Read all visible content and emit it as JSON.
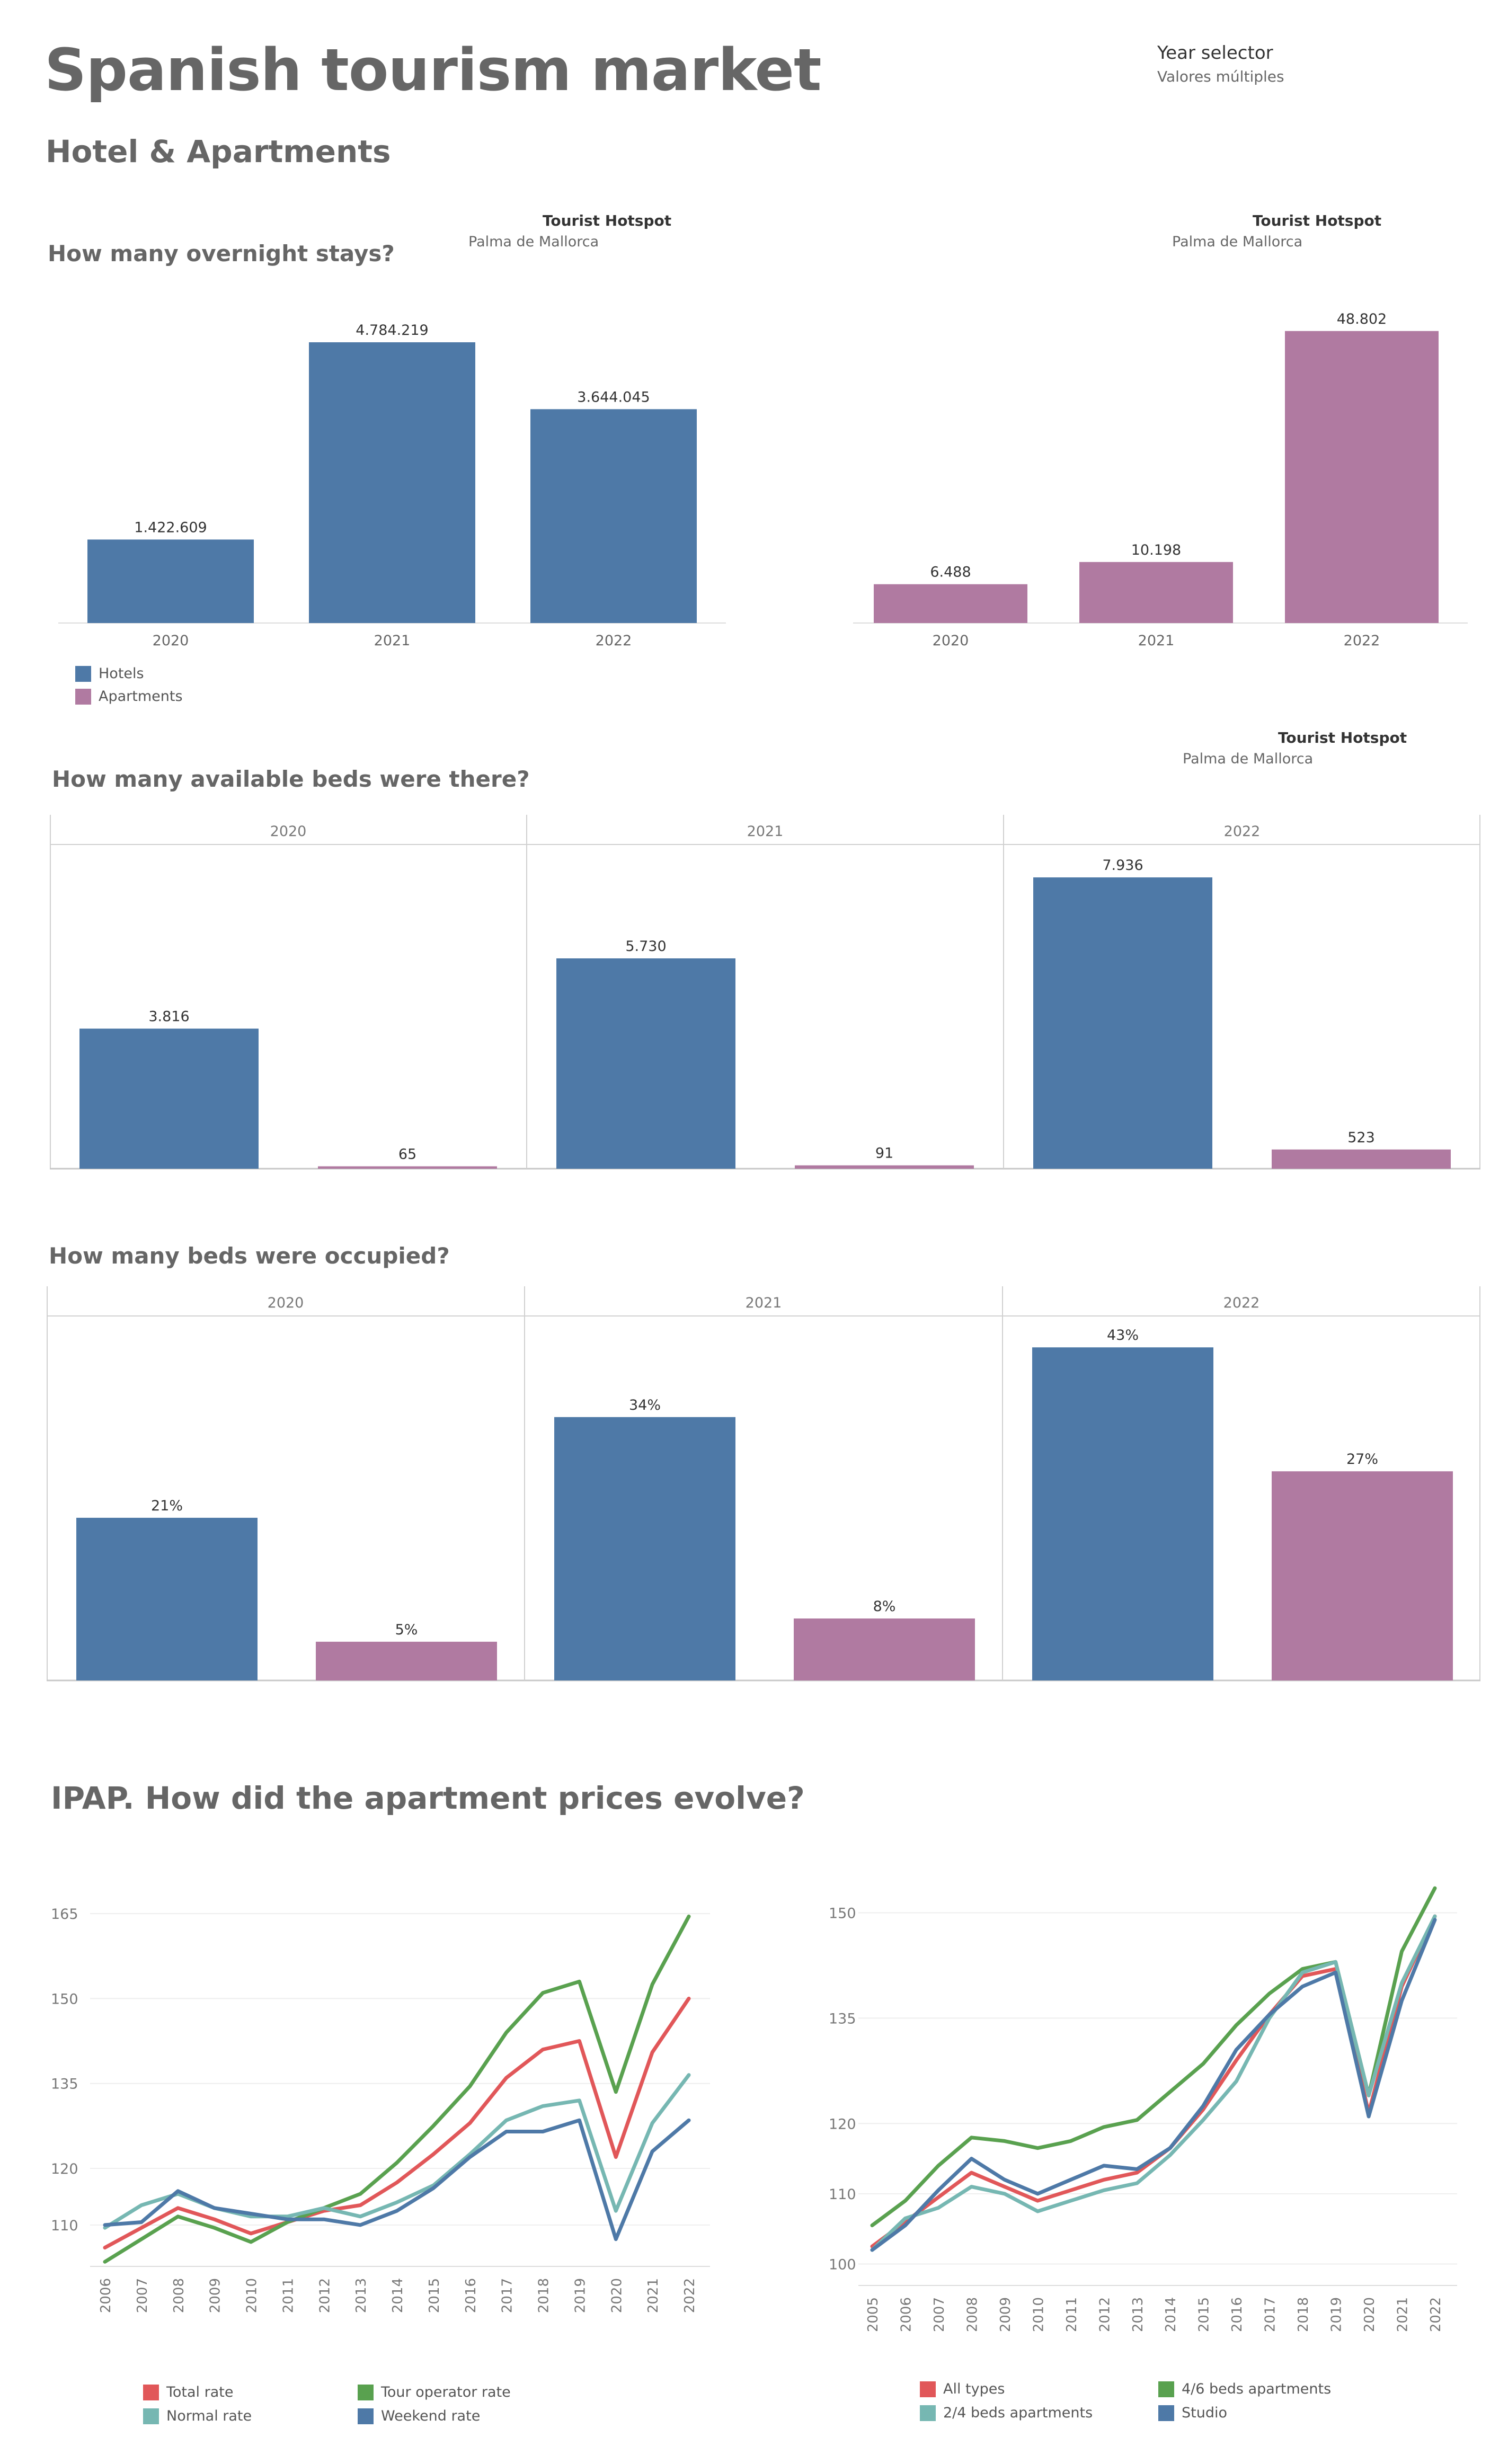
{
  "header": {
    "title": "Spanish tourism market",
    "subtitle": "Hotel & Apartments",
    "year_selector_title": "Year selector",
    "year_selector_value": "Valores múltiples"
  },
  "filters": [
    {
      "title": "Tourist Hotspot",
      "value": "Palma de Mallorca"
    },
    {
      "title": "Tourist Hotspot",
      "value": "Palma de Mallorca"
    },
    {
      "title": "Tourist Hotspot",
      "value": "Palma de Mallorca"
    }
  ],
  "sections": {
    "overnight": "How many overnight stays?",
    "beds": "How many available beds were there?",
    "occupied": "How many beds were occupied?",
    "ipap": "IPAP. How did the apartment prices evolve?"
  },
  "colors": {
    "hotels": "#4e79a7",
    "apartments": "#b07aa1",
    "red": "#e15759",
    "green": "#59a14f",
    "teal": "#76b7b2",
    "blue": "#4e79a7"
  },
  "legend_main": [
    {
      "label": "Hotels",
      "color": "#4e79a7"
    },
    {
      "label": "Apartments",
      "color": "#b07aa1"
    }
  ],
  "legend_left": [
    {
      "label": "Total rate",
      "color": "#e15759"
    },
    {
      "label": "Tour operator rate",
      "color": "#59a14f"
    },
    {
      "label": "Normal rate",
      "color": "#76b7b2"
    },
    {
      "label": "Weekend rate",
      "color": "#4e79a7"
    }
  ],
  "legend_right": [
    {
      "label": "All types",
      "color": "#e15759"
    },
    {
      "label": "4/6 beds apartments",
      "color": "#59a14f"
    },
    {
      "label": "2/4 beds apartments",
      "color": "#76b7b2"
    },
    {
      "label": "Studio",
      "color": "#4e79a7"
    }
  ],
  "chart_data": [
    {
      "id": "overnight-hotels",
      "type": "bar",
      "categories": [
        "2020",
        "2021",
        "2022"
      ],
      "values": [
        1422609,
        4784219,
        3644045
      ],
      "labels": [
        "1.422.609",
        "4.784.219",
        "3.644.045"
      ],
      "series_name": "Hotels",
      "ylim": [
        0,
        5200000
      ]
    },
    {
      "id": "overnight-apartments",
      "type": "bar",
      "categories": [
        "2020",
        "2021",
        "2022"
      ],
      "values": [
        6488,
        10198,
        48802
      ],
      "labels": [
        "6.488",
        "10.198",
        "48.802"
      ],
      "series_name": "Apartments",
      "ylim": [
        0,
        51000
      ]
    },
    {
      "id": "available-beds",
      "type": "bar",
      "panels": [
        "2020",
        "2021",
        "2022"
      ],
      "series": [
        {
          "name": "Hotels",
          "values": [
            3816,
            5730,
            7936
          ],
          "labels": [
            "3.816",
            "5.730",
            "7.936"
          ]
        },
        {
          "name": "Apartments",
          "values": [
            65,
            91,
            523
          ],
          "labels": [
            "65",
            "91",
            "523"
          ]
        }
      ],
      "ylim": [
        0,
        8400
      ]
    },
    {
      "id": "occupied-beds",
      "type": "bar",
      "panels": [
        "2020",
        "2021",
        "2022"
      ],
      "series": [
        {
          "name": "Hotels",
          "values": [
            21,
            34,
            43
          ],
          "labels": [
            "21%",
            "34%",
            "43%"
          ]
        },
        {
          "name": "Apartments",
          "values": [
            5,
            8,
            27
          ],
          "labels": [
            "5%",
            "8%",
            "27%"
          ]
        }
      ],
      "ylim": [
        0,
        45
      ]
    },
    {
      "id": "ipap-rates",
      "type": "line",
      "x": [
        "2006",
        "2007",
        "2008",
        "2009",
        "2010",
        "2011",
        "2012",
        "2013",
        "2014",
        "2015",
        "2016",
        "2017",
        "2018",
        "2019",
        "2020",
        "2021",
        "2022"
      ],
      "yticks": [
        110,
        120,
        135,
        150,
        165
      ],
      "ylim": [
        104,
        168
      ],
      "series": [
        {
          "name": "Total rate",
          "color": "#e15759",
          "values": [
            106,
            109.5,
            113,
            111,
            108.5,
            110.5,
            112.5,
            113.5,
            117.5,
            122.5,
            128,
            136,
            141,
            142.5,
            122,
            140.5,
            150
          ]
        },
        {
          "name": "Tour operator rate",
          "color": "#59a14f",
          "values": [
            103.5,
            107.5,
            111.5,
            109.5,
            107,
            110.5,
            113,
            115.5,
            121,
            127.5,
            134.5,
            144,
            151,
            153,
            133.5,
            152.5,
            164.5
          ]
        },
        {
          "name": "Normal rate",
          "color": "#76b7b2",
          "values": [
            109.5,
            113.5,
            115.5,
            113,
            111.5,
            111.5,
            113,
            111.5,
            114,
            117,
            122.5,
            128.5,
            131,
            132,
            112.5,
            128,
            136.5
          ]
        },
        {
          "name": "Weekend rate",
          "color": "#4e79a7",
          "values": [
            110,
            110.5,
            116,
            113,
            112,
            111,
            111,
            110,
            112.5,
            116.5,
            122,
            126.5,
            126.5,
            128.5,
            107.5,
            123,
            128.5
          ]
        }
      ]
    },
    {
      "id": "ipap-types",
      "type": "line",
      "x": [
        "2005",
        "2006",
        "2007",
        "2008",
        "2009",
        "2010",
        "2011",
        "2012",
        "2013",
        "2014",
        "2015",
        "2016",
        "2017",
        "2018",
        "2019",
        "2020",
        "2021",
        "2022"
      ],
      "yticks": [
        100,
        110,
        120,
        135,
        150
      ],
      "ylim": [
        98,
        152
      ],
      "series": [
        {
          "name": "All types",
          "color": "#e15759",
          "values": [
            102.5,
            106,
            109.5,
            113,
            111,
            109,
            110.5,
            112,
            113,
            116.5,
            122,
            129,
            135.5,
            141,
            142,
            121.5,
            139.5,
            149.5
          ]
        },
        {
          "name": "4/6 beds apartments",
          "color": "#59a14f",
          "values": [
            105.5,
            109,
            114,
            118,
            117.5,
            116.5,
            117.5,
            119.5,
            120.5,
            124.5,
            128.5,
            134,
            138.5,
            142,
            143,
            124,
            144.5,
            153.5
          ]
        },
        {
          "name": "2/4 beds apartments",
          "color": "#76b7b2",
          "values": [
            102,
            106.5,
            108,
            111,
            110,
            107.5,
            109,
            110.5,
            111.5,
            115.5,
            120.5,
            126,
            135,
            141.5,
            143,
            124,
            140,
            149.5
          ]
        },
        {
          "name": "Studio",
          "color": "#4e79a7",
          "values": [
            102,
            105.5,
            110.5,
            115,
            112,
            110,
            112,
            114,
            113.5,
            116.5,
            122.5,
            130.5,
            135.5,
            139.5,
            141.5,
            121,
            137.5,
            149
          ]
        }
      ]
    }
  ]
}
